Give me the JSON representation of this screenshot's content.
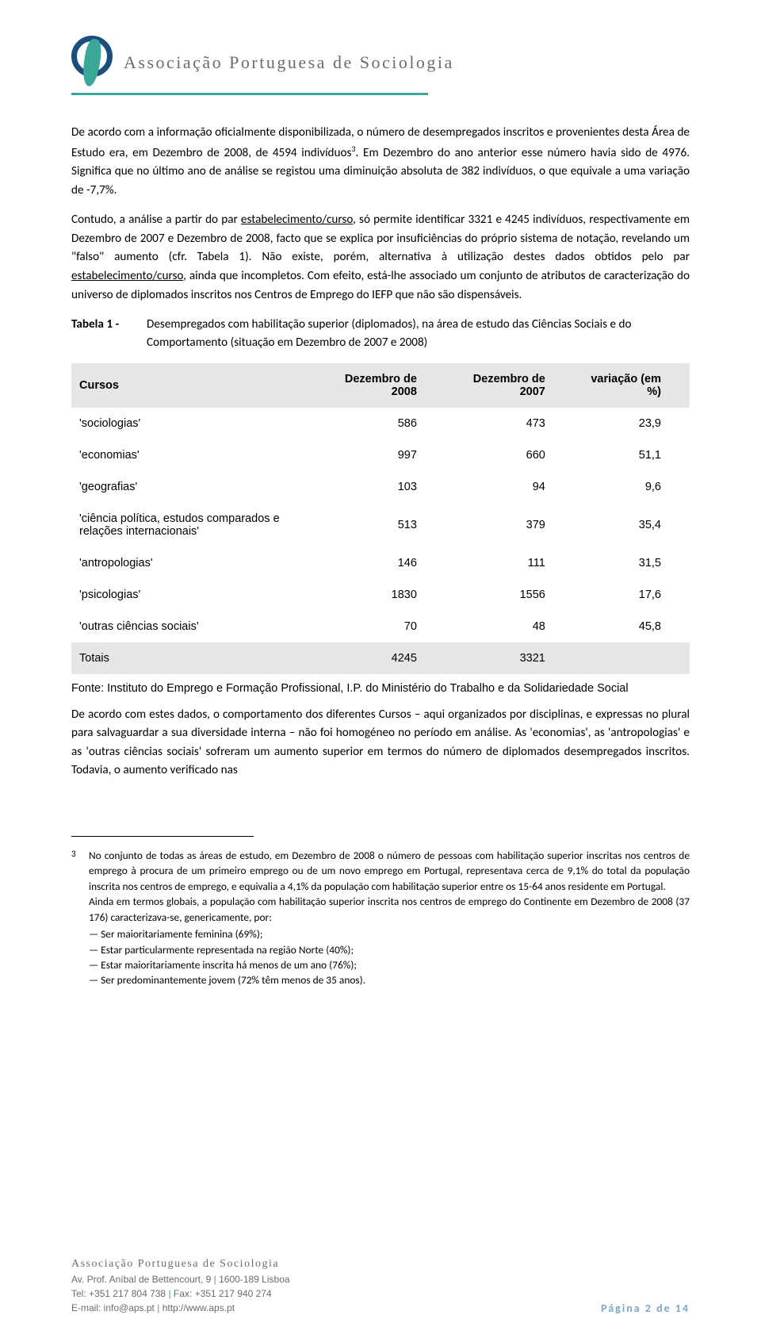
{
  "header": {
    "org_name": "Associação Portuguesa de Sociologia"
  },
  "paragraphs": {
    "p1_a": "De acordo com a informação oficialmente disponibilizada, o número de desempregados inscritos e provenientes desta Área de Estudo era, em Dezembro de 2008, de 4594 indivíduos",
    "p1_b": ". Em Dezembro do ano anterior esse número havia sido de 4976. Significa que no último ano de análise se registou uma diminuição absoluta de 382 indivíduos, o que equivale a uma variação de -7,7%.",
    "p2_a": "Contudo, a análise a partir do par ",
    "p2_u1": "estabelecimento/curso",
    "p2_b": ", só permite identificar 3321 e 4245 indivíduos, respectivamente em Dezembro de 2007 e Dezembro de 2008, facto que se explica por insuficiências do próprio sistema de notação, revelando um \"falso\" aumento (cfr. Tabela 1). Não existe, porém, alternativa à utilização destes dados obtidos pelo par ",
    "p2_u2": "estabelecimento/curso",
    "p2_c": ", ainda que incompletos. Com efeito, está-lhe associado um conjunto de atributos de caracterização do universo de diplomados inscritos nos Centros de Emprego do IEFP que não são dispensáveis.",
    "table_label": "Tabela 1 -",
    "table_caption": "Desempregados com habilitação superior (diplomados), na área de estudo das Ciências Sociais e do Comportamento (situação em Dezembro de 2007 e 2008)",
    "source": "Fonte: Instituto do Emprego e Formação Profissional, I.P. do Ministério do Trabalho e da Solidariedade Social",
    "p3": "De acordo com estes dados, o comportamento dos diferentes Cursos – aqui organizados por disciplinas, e expressas no plural para salvaguardar a sua diversidade interna – não foi homogéneo no período em análise. As 'economias', as 'antropologias' e as 'outras ciências sociais' sofreram um aumento superior em termos do número de diplomados desempregados inscritos. Todavia, o aumento verificado nas"
  },
  "table": {
    "columns": [
      "Cursos",
      "Dezembro de 2008",
      "Dezembro de 2007",
      "variação (em %)"
    ],
    "rows": [
      {
        "c0": "'sociologias'",
        "c1": "586",
        "c2": "473",
        "c3": "23,9"
      },
      {
        "c0": "'economias'",
        "c1": "997",
        "c2": "660",
        "c3": "51,1"
      },
      {
        "c0": "'geografias'",
        "c1": "103",
        "c2": "94",
        "c3": "9,6"
      },
      {
        "c0": "'ciência política, estudos comparados e relações internacionais'",
        "c1": "513",
        "c2": "379",
        "c3": "35,4"
      },
      {
        "c0": "'antropologias'",
        "c1": "146",
        "c2": "111",
        "c3": "31,5"
      },
      {
        "c0": "'psicologias'",
        "c1": "1830",
        "c2": "1556",
        "c3": "17,6"
      },
      {
        "c0": "'outras ciências sociais'",
        "c1": "70",
        "c2": "48",
        "c3": "45,8"
      }
    ],
    "totals": {
      "c0": "Totais",
      "c1": "4245",
      "c2": "3321",
      "c3": ""
    }
  },
  "footnote": {
    "marker": "3",
    "f1": "No conjunto de todas as áreas de estudo, em Dezembro de 2008 o número de pessoas com habilitação superior inscritas nos centros de emprego à procura de um primeiro emprego ou de um novo emprego em Portugal, representava cerca de 9,1% do total da população inscrita nos centros de emprego, e equivalia a 4,1% da população com habilitação superior entre os 15-64 anos residente em Portugal.",
    "f2": "Ainda em termos globais, a população com habilitação superior inscrita nos centros de emprego do Continente em Dezembro de 2008 (37 176) caracterizava-se, genericamente, por:",
    "bullets": [
      "Ser maioritariamente feminina (69%);",
      "Estar particularmente representada na região Norte (40%);",
      "Estar maioritariamente inscrita há menos de um ano (76%);",
      "Ser predominantemente jovem (72% têm menos de 35 anos)."
    ]
  },
  "footer": {
    "org": "Associação Portuguesa de Sociologia",
    "addr1_a": "Av. Prof. Aníbal de Bettencourt, 9 ",
    "addr1_b": " 1600-189 Lisboa",
    "addr2_a": "Tel: +351 217 804 738 ",
    "addr2_b": " Fax: +351 217 940 274",
    "addr3_a": "E-mail: info@aps.pt ",
    "addr3_b": " http://www.aps.pt",
    "page": "Página 2 de 14"
  },
  "style": {
    "teal": "#3aa896",
    "navy": "#1a4d80",
    "header_bg": "#e6e6e6",
    "page_color": "#7ba7c9"
  }
}
